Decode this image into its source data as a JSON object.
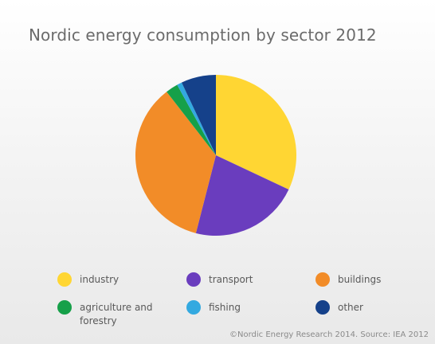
{
  "chart_data": {
    "type": "pie",
    "title": "Nordic energy consumption by sector 2012",
    "start_angle_deg": 0,
    "direction": "clockwise",
    "slices": [
      {
        "label": "industry",
        "value": 32.0,
        "color": "#FFD633"
      },
      {
        "label": "transport",
        "value": 22.0,
        "color": "#6A3DBE"
      },
      {
        "label": "buildings",
        "value": 35.5,
        "color": "#F28C28"
      },
      {
        "label": "agriculture and forestry",
        "value": 2.5,
        "color": "#16A049"
      },
      {
        "label": "fishing",
        "value": 1.0,
        "color": "#33A9E0"
      },
      {
        "label": "other",
        "value": 7.0,
        "color": "#15418A"
      }
    ],
    "legend_placement": "bottom",
    "source": "©Nordic Energy Research 2014. Source: IEA 2012"
  }
}
